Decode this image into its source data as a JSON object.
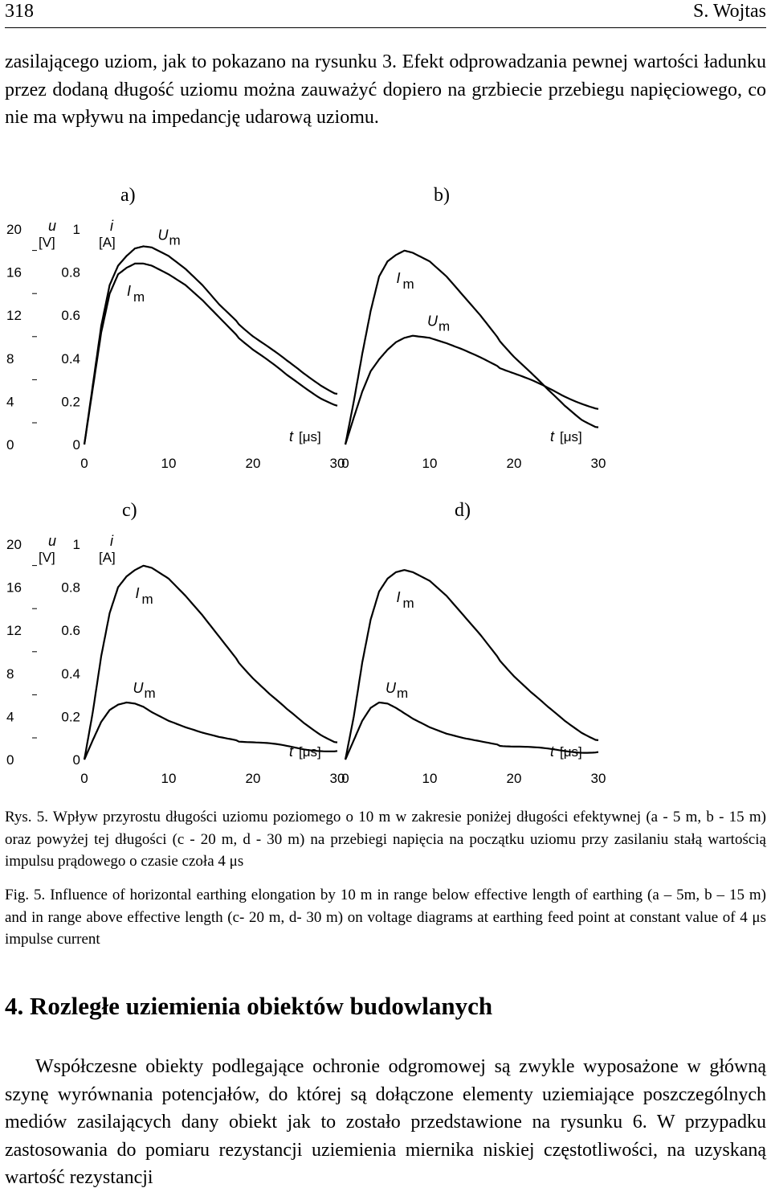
{
  "header": {
    "page_number": "318",
    "author": "S. Wojtas"
  },
  "intro_paragraph": "zasilającego uziom, jak to pokazano na rysunku 3. Efekt odprowadzania pewnej wartości ładunku przez dodaną długość uziomu można zauważyć dopiero na grzbiecie przebiegu napięciowego, co nie ma wpływu na impedancję udarową uziomu.",
  "figure": {
    "panel_labels": [
      "a)",
      "b)",
      "c)",
      "d)"
    ],
    "u_axis_label": "u",
    "u_axis_unit": "[V]",
    "i_axis_label": "i",
    "i_axis_unit": "[A]",
    "time_axis_label": "t",
    "time_axis_unit": "[μs]",
    "current_curve_label": "I",
    "current_curve_sub": "m",
    "voltage_curve_label": "U",
    "voltage_curve_sub": "m"
  },
  "chart_data": [
    {
      "type": "line",
      "panel": "a)",
      "x_ticks": [
        "0",
        "10",
        "20",
        "30"
      ],
      "u_ticks": [
        "0",
        "4",
        "8",
        "12",
        "16",
        "20"
      ],
      "i_ticks": [
        "0",
        "0.2",
        "0.4",
        "0.6",
        "0.8",
        "1"
      ],
      "xlim": [
        0,
        30
      ],
      "ylim_u": [
        0,
        20
      ],
      "ylim_i": [
        0,
        1
      ],
      "series": [
        {
          "name": "Um",
          "axis": "u",
          "points": [
            [
              0,
              0
            ],
            [
              1,
              5.5
            ],
            [
              2,
              11
            ],
            [
              3,
              14.8
            ],
            [
              4,
              16.6
            ],
            [
              5,
              17.5
            ],
            [
              6,
              18.2
            ],
            [
              7,
              18.4
            ],
            [
              8,
              18.3
            ],
            [
              10,
              17.5
            ],
            [
              12,
              16.3
            ],
            [
              14,
              14.8
            ],
            [
              16,
              13
            ],
            [
              18,
              11.5
            ],
            [
              20,
              10.1
            ],
            [
              22,
              8.9
            ],
            [
              24,
              7.7
            ],
            [
              26,
              6.6
            ],
            [
              28,
              5.6
            ],
            [
              30,
              4.7
            ]
          ]
        },
        {
          "name": "Im",
          "axis": "i",
          "points": [
            [
              0,
              0
            ],
            [
              1,
              0.26
            ],
            [
              2,
              0.52
            ],
            [
              3,
              0.7
            ],
            [
              4,
              0.79
            ],
            [
              5,
              0.82
            ],
            [
              6,
              0.84
            ],
            [
              7,
              0.84
            ],
            [
              8,
              0.83
            ],
            [
              10,
              0.79
            ],
            [
              12,
              0.74
            ],
            [
              14,
              0.67
            ],
            [
              16,
              0.59
            ],
            [
              18,
              0.51
            ],
            [
              20,
              0.44
            ],
            [
              22,
              0.38
            ],
            [
              24,
              0.32
            ],
            [
              26,
              0.27
            ],
            [
              28,
              0.22
            ],
            [
              30,
              0.18
            ]
          ]
        }
      ]
    },
    {
      "type": "line",
      "panel": "b)",
      "x_ticks": [
        "0",
        "10",
        "20",
        "30"
      ],
      "xlim": [
        0,
        30
      ],
      "ylim_u": [
        0,
        20
      ],
      "ylim_i": [
        0,
        1
      ],
      "series": [
        {
          "name": "Im",
          "axis": "i",
          "points": [
            [
              0,
              0
            ],
            [
              1,
              0.2
            ],
            [
              2,
              0.42
            ],
            [
              3,
              0.62
            ],
            [
              4,
              0.78
            ],
            [
              5,
              0.85
            ],
            [
              6,
              0.88
            ],
            [
              7,
              0.9
            ],
            [
              8,
              0.89
            ],
            [
              10,
              0.85
            ],
            [
              12,
              0.78
            ],
            [
              14,
              0.69
            ],
            [
              16,
              0.6
            ],
            [
              18,
              0.5
            ],
            [
              20,
              0.41
            ],
            [
              22,
              0.33
            ],
            [
              24,
              0.25
            ],
            [
              26,
              0.18
            ],
            [
              28,
              0.12
            ],
            [
              30,
              0.08
            ]
          ]
        },
        {
          "name": "Um",
          "axis": "u",
          "points": [
            [
              0,
              0
            ],
            [
              1,
              2.5
            ],
            [
              2,
              4.9
            ],
            [
              3,
              6.8
            ],
            [
              4,
              7.9
            ],
            [
              5,
              8.8
            ],
            [
              6,
              9.5
            ],
            [
              7,
              9.9
            ],
            [
              8,
              10.1
            ],
            [
              10,
              9.9
            ],
            [
              12,
              9.4
            ],
            [
              14,
              8.8
            ],
            [
              16,
              8.1
            ],
            [
              18,
              7.3
            ],
            [
              20,
              6.6
            ],
            [
              22,
              5.9
            ],
            [
              24,
              5.2
            ],
            [
              26,
              4.5
            ],
            [
              28,
              3.9
            ],
            [
              30,
              3.3
            ]
          ]
        }
      ]
    },
    {
      "type": "line",
      "panel": "c)",
      "x_ticks": [
        "0",
        "10",
        "20",
        "30"
      ],
      "u_ticks": [
        "0",
        "4",
        "8",
        "12",
        "16",
        "20"
      ],
      "i_ticks": [
        "0",
        "0.2",
        "0.4",
        "0.6",
        "0.8",
        "1"
      ],
      "xlim": [
        0,
        30
      ],
      "ylim_u": [
        0,
        20
      ],
      "ylim_i": [
        0,
        1
      ],
      "series": [
        {
          "name": "Im",
          "axis": "i",
          "points": [
            [
              0,
              0
            ],
            [
              1,
              0.22
            ],
            [
              2,
              0.48
            ],
            [
              3,
              0.68
            ],
            [
              4,
              0.8
            ],
            [
              5,
              0.85
            ],
            [
              6,
              0.88
            ],
            [
              7,
              0.9
            ],
            [
              8,
              0.89
            ],
            [
              10,
              0.84
            ],
            [
              12,
              0.76
            ],
            [
              14,
              0.67
            ],
            [
              16,
              0.57
            ],
            [
              18,
              0.47
            ],
            [
              20,
              0.38
            ],
            [
              22,
              0.3
            ],
            [
              24,
              0.23
            ],
            [
              26,
              0.17
            ],
            [
              28,
              0.12
            ],
            [
              30,
              0.08
            ]
          ]
        },
        {
          "name": "Um",
          "axis": "u",
          "points": [
            [
              0,
              0
            ],
            [
              1,
              1.8
            ],
            [
              2,
              3.5
            ],
            [
              3,
              4.6
            ],
            [
              4,
              5.1
            ],
            [
              5,
              5.3
            ],
            [
              6,
              5.2
            ],
            [
              7,
              4.9
            ],
            [
              8,
              4.4
            ],
            [
              10,
              3.6
            ],
            [
              12,
              3
            ],
            [
              14,
              2.5
            ],
            [
              16,
              2.1
            ],
            [
              18,
              1.8
            ],
            [
              20,
              1.6
            ],
            [
              22,
              1.4
            ],
            [
              24,
              1.2
            ],
            [
              26,
              1
            ],
            [
              28,
              0.9
            ],
            [
              30,
              0.8
            ]
          ]
        }
      ]
    },
    {
      "type": "line",
      "panel": "d)",
      "x_ticks": [
        "0",
        "10",
        "20",
        "30"
      ],
      "xlim": [
        0,
        30
      ],
      "ylim_u": [
        0,
        20
      ],
      "ylim_i": [
        0,
        1
      ],
      "series": [
        {
          "name": "Im",
          "axis": "i",
          "points": [
            [
              0,
              0
            ],
            [
              1,
              0.2
            ],
            [
              2,
              0.45
            ],
            [
              3,
              0.65
            ],
            [
              4,
              0.78
            ],
            [
              5,
              0.84
            ],
            [
              6,
              0.87
            ],
            [
              7,
              0.88
            ],
            [
              8,
              0.87
            ],
            [
              10,
              0.83
            ],
            [
              12,
              0.76
            ],
            [
              14,
              0.67
            ],
            [
              16,
              0.58
            ],
            [
              18,
              0.48
            ],
            [
              20,
              0.39
            ],
            [
              22,
              0.31
            ],
            [
              24,
              0.24
            ],
            [
              26,
              0.18
            ],
            [
              28,
              0.13
            ],
            [
              30,
              0.09
            ]
          ]
        },
        {
          "name": "Um",
          "axis": "u",
          "points": [
            [
              0,
              0
            ],
            [
              1,
              1.8
            ],
            [
              2,
              3.6
            ],
            [
              3,
              4.8
            ],
            [
              4,
              5.3
            ],
            [
              5,
              5.2
            ],
            [
              6,
              4.8
            ],
            [
              7,
              4.3
            ],
            [
              8,
              3.8
            ],
            [
              10,
              3
            ],
            [
              12,
              2.4
            ],
            [
              14,
              2
            ],
            [
              16,
              1.7
            ],
            [
              18,
              1.4
            ],
            [
              20,
              1.2
            ],
            [
              22,
              1.05
            ],
            [
              24,
              0.95
            ],
            [
              26,
              0.85
            ],
            [
              28,
              0.75
            ],
            [
              30,
              0.7
            ]
          ]
        }
      ]
    }
  ],
  "caption_pl": "Rys. 5. Wpływ przyrostu długości uziomu poziomego o 10 m w zakresie poniżej długości efektywnej (a - 5 m, b - 15 m) oraz powyżej tej długości (c - 20 m, d - 30 m) na przebiegi napięcia na początku uziomu przy zasilaniu stałą wartością impulsu prądowego o czasie czoła 4 μs",
  "caption_en": "Fig. 5. Influence of horizontal earthing elongation by 10 m in range below effective length of earthing (a – 5m, b – 15 m) and in range above effective length (c- 20 m, d- 30 m) on voltage diagrams at earthing feed point at constant value of 4 μs impulse current",
  "section_heading": "4. Rozległe uziemienia obiektów budowlanych",
  "section_paragraph": "Współczesne obiekty podlegające ochronie odgromowej są zwykle wyposażone w główną szynę wyrównania potencjałów, do której są dołączone elementy uziemiające poszczególnych mediów zasilających dany obiekt jak to zostało przedstawione na rysunku 6. W przypadku zastosowania do pomiaru rezystancji uziemienia miernika niskiej częstotliwości, na uzyskaną wartość rezystancji"
}
